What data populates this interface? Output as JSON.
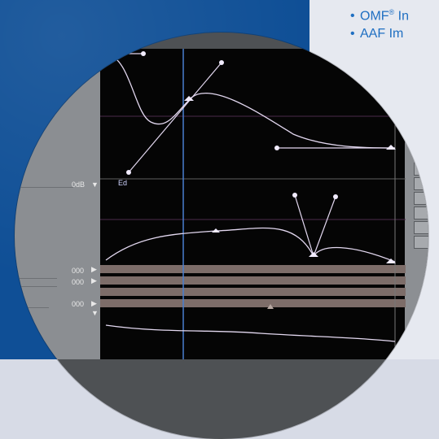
{
  "bullets": [
    {
      "symbol": "•",
      "text": "OMF",
      "super": "®",
      "suffix": " In"
    },
    {
      "symbol": "•",
      "text": "AAF Im",
      "super": "",
      "suffix": ""
    }
  ],
  "labels": {
    "keyframe_label": "Ed",
    "level_top": "0dB",
    "level_a": "000",
    "level_b": "000",
    "level_c": "000"
  },
  "colors": {
    "blue": "#0f4f96",
    "curve": "#e3d8f0",
    "playhead": "#4a7fd0",
    "track": "#7d6d69"
  },
  "icons": [
    "arrow-icon",
    "playhead-marker-icon",
    "keyframe-marker-icon"
  ]
}
